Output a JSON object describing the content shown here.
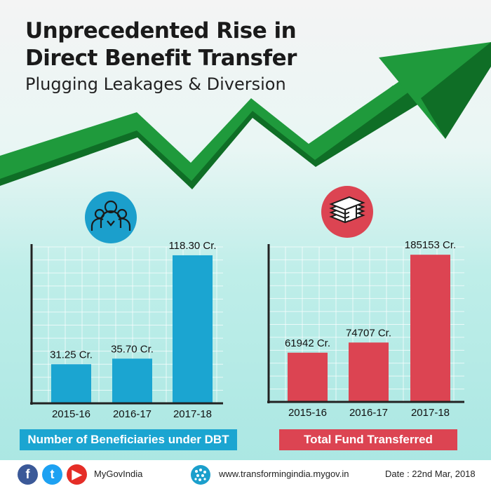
{
  "header": {
    "title_line1": "Unprecedented Rise in",
    "title_line2": "Direct Benefit Transfer",
    "subtitle": "Plugging Leakages & Diversion"
  },
  "colors": {
    "arrow": "#1f9a3c",
    "arrow_dark": "#0f6e26",
    "beneficiaries_bar": "#1ba5d1",
    "fund_bar": "#dc4452",
    "axis": "#222222"
  },
  "icons": {
    "beneficiaries": "people-group-icon",
    "fund": "money-stack-icon",
    "trend": "rising-arrow-icon"
  },
  "chart_data": [
    {
      "type": "bar",
      "title": "Number of Beneficiaries under DBT",
      "categories": [
        "2015-16",
        "2016-17",
        "2017-18"
      ],
      "values": [
        31.25,
        35.7,
        118.3
      ],
      "value_labels": [
        "31.25 Cr.",
        "35.70 Cr.",
        "118.30 Cr."
      ],
      "ylim": [
        0,
        125
      ],
      "grid": true
    },
    {
      "type": "bar",
      "title": "Total Fund Transferred",
      "categories": [
        "2015-16",
        "2016-17",
        "2017-18"
      ],
      "values": [
        61942,
        74707,
        185153
      ],
      "value_labels": [
        "61942 Cr.",
        "74707 Cr.",
        "185153 Cr."
      ],
      "ylim": [
        0,
        195000
      ],
      "grid": true
    }
  ],
  "footer": {
    "facebook": "f",
    "twitter": "t",
    "youtube": "▶",
    "handle": "MyGovIndia",
    "website": "www.transformingindia.mygov.in",
    "date": "Date : 22nd Mar, 2018"
  }
}
